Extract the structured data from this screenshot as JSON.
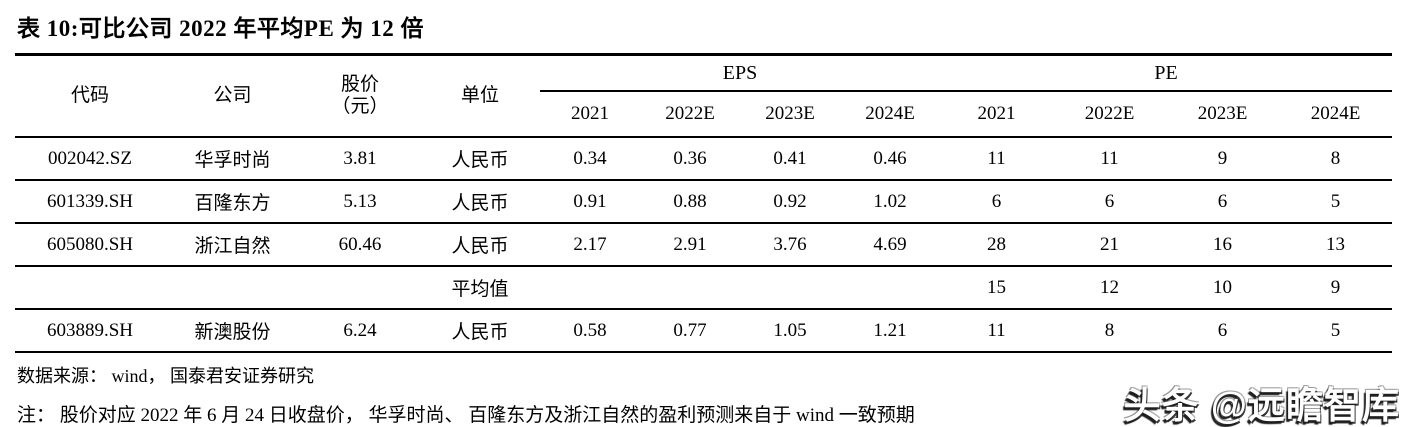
{
  "title": "表 10:可比公司 2022 年平均PE 为 12 倍",
  "table": {
    "headers": {
      "code": "代码",
      "company": "公司",
      "price_line1": "股价",
      "price_line2": "（元）",
      "unit": "单位",
      "eps_group": "EPS",
      "pe_group": "PE",
      "years": [
        "2021",
        "2022E",
        "2023E",
        "2024E"
      ]
    },
    "rows": [
      {
        "code": "002042.SZ",
        "company": "华孚时尚",
        "price": "3.81",
        "unit": "人民币",
        "eps": [
          "0.34",
          "0.36",
          "0.41",
          "0.46"
        ],
        "pe": [
          "11",
          "11",
          "9",
          "8"
        ]
      },
      {
        "code": "601339.SH",
        "company": "百隆东方",
        "price": "5.13",
        "unit": "人民币",
        "eps": [
          "0.91",
          "0.88",
          "0.92",
          "1.02"
        ],
        "pe": [
          "6",
          "6",
          "6",
          "5"
        ]
      },
      {
        "code": "605080.SH",
        "company": "浙江自然",
        "price": "60.46",
        "unit": "人民币",
        "eps": [
          "2.17",
          "2.91",
          "3.76",
          "4.69"
        ],
        "pe": [
          "28",
          "21",
          "16",
          "13"
        ]
      }
    ],
    "average_row": {
      "label": "平均值",
      "pe": [
        "15",
        "12",
        "10",
        "9"
      ]
    },
    "target_row": {
      "code": "603889.SH",
      "company": "新澳股份",
      "price": "6.24",
      "unit": "人民币",
      "eps": [
        "0.58",
        "0.77",
        "1.05",
        "1.21"
      ],
      "pe": [
        "11",
        "8",
        "6",
        "5"
      ]
    }
  },
  "footer": {
    "source": "数据来源： wind， 国泰君安证券研究",
    "note": "注： 股价对应 2022 年 6 月 24 日收盘价， 华孚时尚、 百隆东方及浙江自然的盈利预测来自于 wind 一致预期"
  },
  "watermark": "头条 @远瞻智库",
  "colors": {
    "text": "#000000",
    "background": "#ffffff",
    "rule_line": "#000000",
    "watermark_fill": "#ffffff",
    "watermark_shadow": "#1e1e1e"
  }
}
